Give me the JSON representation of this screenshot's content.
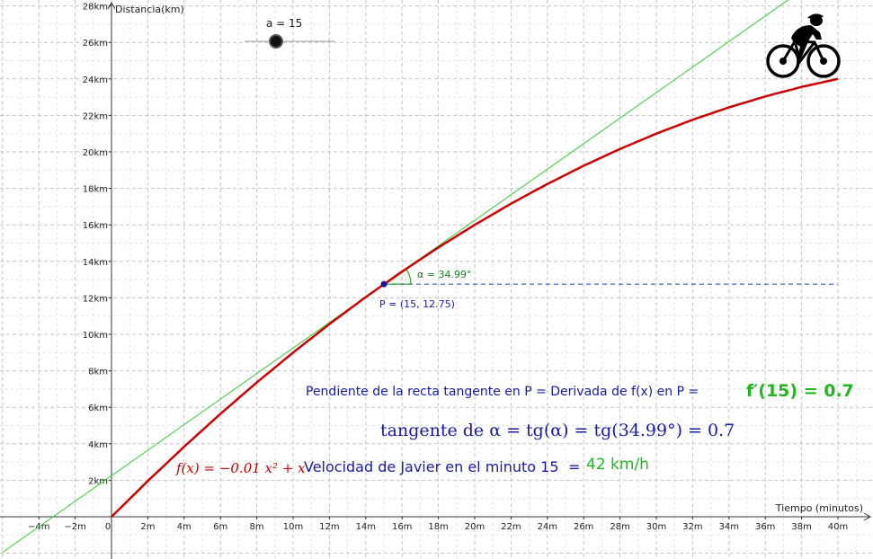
{
  "slider": {
    "label": "a = 15",
    "value": 15,
    "min": 0,
    "max": 40
  },
  "point": {
    "label": "P = (15, 12.75)",
    "x": 15,
    "y": 12.75
  },
  "angle": {
    "label": "α = 34.99°"
  },
  "texts": {
    "slope_label": "Pendiente de la recta tangente en P = Derivada de f(x) en P =",
    "slope_value": "f′(15) = 0.7",
    "tan_line": "tangente de α  =  tg(α)  =  tg(34.99°)  =  0.7",
    "func_label": "f(x) = −0.01 x² + x",
    "vel_label": "Velocidad de Javier en el minuto 15",
    "vel_eq": "=",
    "vel_value": "42 km/h"
  },
  "colors": {
    "curve": "#cc0000",
    "tangent": "#33cc33",
    "horizontal": "#3355cc",
    "point": "#1a1a8c",
    "grid": "#c8c8c8"
  },
  "icon": "cyclist-icon",
  "chart_data": {
    "type": "line",
    "xlabel": "Tiempo (minutos)",
    "ylabel": "Distancia(km)",
    "xlim": [
      -6,
      42
    ],
    "ylim": [
      -2,
      28
    ],
    "x_ticks": [
      -4,
      -2,
      0,
      2,
      4,
      6,
      8,
      10,
      12,
      14,
      16,
      18,
      20,
      22,
      24,
      26,
      28,
      30,
      32,
      34,
      36,
      38,
      40
    ],
    "x_tick_labels": [
      "−4m",
      "−2m",
      "0",
      "2m",
      "4m",
      "6m",
      "8m",
      "10m",
      "12m",
      "14m",
      "16m",
      "18m",
      "20m",
      "22m",
      "24m",
      "26m",
      "28m",
      "30m",
      "32m",
      "34m",
      "36m",
      "38m",
      "40m"
    ],
    "y_ticks": [
      2,
      4,
      6,
      8,
      10,
      12,
      14,
      16,
      18,
      20,
      22,
      24,
      26,
      28
    ],
    "y_tick_labels": [
      "2km",
      "4km",
      "6km",
      "8km",
      "10km",
      "12km",
      "14km",
      "16km",
      "18km",
      "20km",
      "22km",
      "24km",
      "26km",
      "28km"
    ],
    "grid": true,
    "series": [
      {
        "x": [
          0,
          2,
          4,
          6,
          8,
          10,
          12,
          14,
          16,
          18,
          20,
          22,
          24,
          26,
          28,
          30,
          32,
          34,
          36,
          38,
          40
        ],
        "y": [
          0,
          1.96,
          3.84,
          5.64,
          7.36,
          9,
          10.56,
          12.04,
          13.44,
          14.76,
          16,
          17.16,
          18.24,
          19.24,
          20.16,
          21,
          21.76,
          22.44,
          23.04,
          23.56,
          24
        ]
      },
      {
        "x": [
          -6,
          42
        ],
        "y": [
          -1.95,
          31.65
        ]
      },
      {
        "x": [
          15,
          40
        ],
        "y": [
          12.75,
          12.75
        ]
      }
    ]
  }
}
